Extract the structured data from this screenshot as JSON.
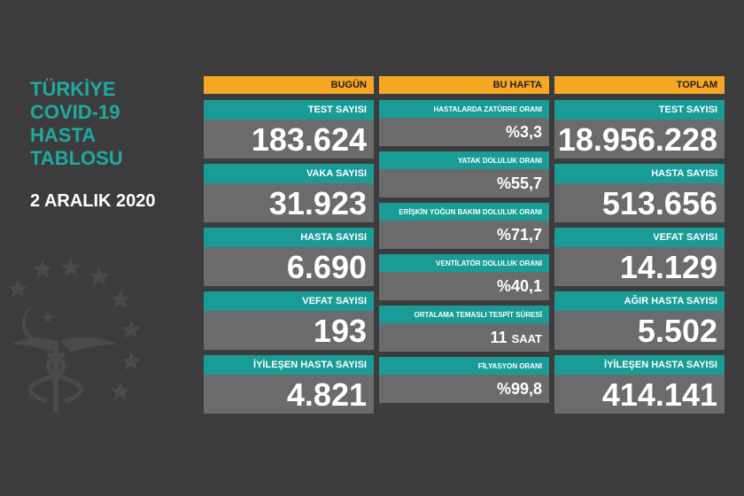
{
  "title_lines": [
    "TÜRKİYE",
    "COVID-19",
    "HASTA",
    "TABLOSU"
  ],
  "date": "2 ARALIK 2020",
  "today": {
    "header": "BUGÜN",
    "cards": [
      {
        "label": "TEST SAYISI",
        "value": "183.624"
      },
      {
        "label": "VAKA SAYISI",
        "value": "31.923"
      },
      {
        "label": "HASTA SAYISI",
        "value": "6.690"
      },
      {
        "label": "VEFAT SAYISI",
        "value": "193"
      },
      {
        "label": "İYİLEŞEN HASTA SAYISI",
        "value": "4.821"
      }
    ]
  },
  "week": {
    "header": "BU HAFTA",
    "cards": [
      {
        "label": "HASTALARDA ZATÜRRE ORANI",
        "value": "%3,3"
      },
      {
        "label": "YATAK DOLULUK ORANI",
        "value": "%55,7"
      },
      {
        "label": "ERİŞKİN YOĞUN BAKIM DOLULUK ORANI",
        "value": "%71,7"
      },
      {
        "label": "VENTİLATÖR DOLULUK ORANI",
        "value": "%40,1"
      },
      {
        "label": "ORTALAMA TEMASLI TESPİT SÜRESİ",
        "value": "11",
        "unit": "SAAT"
      },
      {
        "label": "FİLYASYON ORANI",
        "value": "%99,8"
      }
    ]
  },
  "total": {
    "header": "TOPLAM",
    "cards": [
      {
        "label": "TEST SAYISI",
        "value": "18.956.228"
      },
      {
        "label": "HASTA SAYISI",
        "value": "513.656"
      },
      {
        "label": "VEFAT SAYISI",
        "value": "14.129"
      },
      {
        "label": "AĞIR HASTA SAYISI",
        "value": "5.502"
      },
      {
        "label": "İYİLEŞEN HASTA SAYISI",
        "value": "414.141"
      }
    ]
  },
  "colors": {
    "background": "#3c3c3c",
    "accent_teal": "#199c97",
    "title_teal": "#1fa9a3",
    "header_orange": "#f5a623",
    "card_gray": "#6b6b6b"
  },
  "icons": {
    "emblem": "ministry-of-health-emblem"
  }
}
